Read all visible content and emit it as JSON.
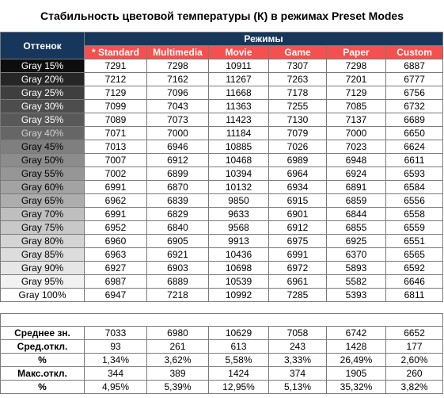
{
  "title": "Стабильность цветовой температуры (К) в режимах Preset Modes",
  "headers": {
    "shade": "Оттенок",
    "modes": "Режимы"
  },
  "chart_data": {
    "type": "table",
    "title": "Стабильность цветовой температуры (К) в режимах Preset Modes",
    "columns": [
      "* Standard",
      "Multimedia",
      "Movie",
      "Game",
      "Paper",
      "Custom"
    ],
    "rows": [
      {
        "label": "Gray 15%",
        "bg": "#0d0d0d",
        "fg": "#ffffff",
        "values": [
          "7291",
          "7298",
          "10911",
          "7307",
          "7298",
          "6887"
        ]
      },
      {
        "label": "Gray 20%",
        "bg": "#262626",
        "fg": "#ffffff",
        "values": [
          "7212",
          "7162",
          "11267",
          "7263",
          "7201",
          "6777"
        ]
      },
      {
        "label": "Gray 25%",
        "bg": "#3f3f3f",
        "fg": "#ffffff",
        "values": [
          "7129",
          "7096",
          "11668",
          "7178",
          "7129",
          "6756"
        ]
      },
      {
        "label": "Gray 30%",
        "bg": "#4d4d4d",
        "fg": "#ffffff",
        "values": [
          "7099",
          "7043",
          "11363",
          "7255",
          "7085",
          "6732"
        ]
      },
      {
        "label": "Gray 35%",
        "bg": "#595959",
        "fg": "#ffffff",
        "values": [
          "7089",
          "7073",
          "11423",
          "7130",
          "7137",
          "6689"
        ]
      },
      {
        "label": "Gray 40%",
        "bg": "#666666",
        "fg": "#cfcfcf",
        "values": [
          "7071",
          "7000",
          "11184",
          "7079",
          "7000",
          "6650"
        ]
      },
      {
        "label": "Gray 45%",
        "bg": "#7f7f7f",
        "fg": "#000000",
        "values": [
          "7013",
          "6946",
          "10885",
          "7026",
          "7023",
          "6624"
        ]
      },
      {
        "label": "Gray 50%",
        "bg": "#8c8c8c",
        "fg": "#000000",
        "values": [
          "7007",
          "6912",
          "10468",
          "6989",
          "6948",
          "6611"
        ]
      },
      {
        "label": "Gray 55%",
        "bg": "#969696",
        "fg": "#000000",
        "values": [
          "7002",
          "6899",
          "10394",
          "6964",
          "6924",
          "6593"
        ]
      },
      {
        "label": "Gray 60%",
        "bg": "#a3a3a3",
        "fg": "#000000",
        "values": [
          "6991",
          "6870",
          "10132",
          "6934",
          "6891",
          "6584"
        ]
      },
      {
        "label": "Gray 65%",
        "bg": "#adadad",
        "fg": "#000000",
        "values": [
          "6962",
          "6839",
          "9850",
          "6915",
          "6859",
          "6556"
        ]
      },
      {
        "label": "Gray 70%",
        "bg": "#bfbfbf",
        "fg": "#000000",
        "values": [
          "6991",
          "6829",
          "9633",
          "6901",
          "6844",
          "6558"
        ]
      },
      {
        "label": "Gray 75%",
        "bg": "#c8c8c8",
        "fg": "#000000",
        "values": [
          "6952",
          "6840",
          "9568",
          "6912",
          "6855",
          "6559"
        ]
      },
      {
        "label": "Gray 80%",
        "bg": "#d4d4d4",
        "fg": "#000000",
        "values": [
          "6960",
          "6905",
          "9913",
          "6975",
          "6925",
          "6551"
        ]
      },
      {
        "label": "Gray 85%",
        "bg": "#dcdcdc",
        "fg": "#000000",
        "values": [
          "6963",
          "6921",
          "10436",
          "6991",
          "6370",
          "6565"
        ]
      },
      {
        "label": "Gray 90%",
        "bg": "#e6e6e6",
        "fg": "#000000",
        "values": [
          "6927",
          "6903",
          "10698",
          "6972",
          "5893",
          "6592"
        ]
      },
      {
        "label": "Gray 95%",
        "bg": "#f2f2f2",
        "fg": "#000000",
        "values": [
          "6987",
          "6889",
          "10539",
          "6961",
          "5582",
          "6646"
        ]
      },
      {
        "label": "Gray 100%",
        "bg": "#ffffff",
        "fg": "#000000",
        "values": [
          "6947",
          "7218",
          "10992",
          "7285",
          "5393",
          "6811"
        ]
      }
    ],
    "stats": [
      {
        "label": "Среднее зн.",
        "values": [
          "7033",
          "6980",
          "10629",
          "7058",
          "6742",
          "6652"
        ]
      },
      {
        "label": "Сред.откл.",
        "values": [
          "93",
          "261",
          "613",
          "243",
          "1428",
          "177"
        ]
      },
      {
        "label": "%",
        "values": [
          "1,34%",
          "3,62%",
          "5,58%",
          "3,33%",
          "26,49%",
          "2,60%"
        ]
      },
      {
        "label": "Макс.откл.",
        "values": [
          "344",
          "389",
          "1424",
          "374",
          "1905",
          "260"
        ]
      },
      {
        "label": "%",
        "values": [
          "4,95%",
          "5,39%",
          "12,95%",
          "5,13%",
          "35,32%",
          "3,82%"
        ]
      }
    ]
  },
  "colors": {
    "header_dark": "#16365c",
    "header_red": "#f4504f"
  }
}
